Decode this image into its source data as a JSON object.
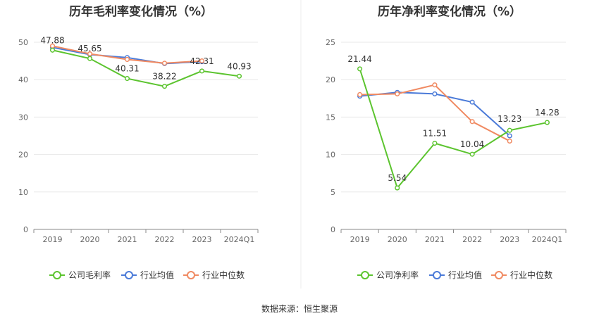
{
  "source_label": "数据来源：恒生聚源",
  "colors": {
    "company": "#5cc42f",
    "avg": "#4a7ad8",
    "median": "#f08a62",
    "grid": "#e8e8e8",
    "axis": "#888888"
  },
  "chart_data": [
    {
      "type": "line",
      "title": "历年毛利率变化情况（%）",
      "categories": [
        "2019",
        "2020",
        "2021",
        "2022",
        "2023",
        "2024Q1"
      ],
      "ylim": [
        0,
        50
      ],
      "yticks": [
        0,
        10,
        20,
        30,
        40,
        50
      ],
      "grid": true,
      "legend": "bottom",
      "series": [
        {
          "name": "公司毛利率",
          "key": "company",
          "values": [
            47.88,
            45.65,
            40.31,
            38.22,
            42.31,
            40.93
          ],
          "labels": [
            "47.88",
            "45.65",
            "40.31",
            "38.22",
            "42.31",
            "40.93"
          ]
        },
        {
          "name": "行业均值",
          "key": "avg",
          "values": [
            48.6,
            46.7,
            45.9,
            44.3,
            44.8,
            null
          ]
        },
        {
          "name": "行业中位数",
          "key": "median",
          "values": [
            49.0,
            46.9,
            45.4,
            44.4,
            45.0,
            null
          ]
        }
      ]
    },
    {
      "type": "line",
      "title": "历年净利率变化情况（%）",
      "categories": [
        "2019",
        "2020",
        "2021",
        "2022",
        "2023",
        "2024Q1"
      ],
      "ylim": [
        0,
        25
      ],
      "yticks": [
        0,
        5,
        10,
        15,
        20,
        25
      ],
      "grid": true,
      "legend": "bottom",
      "series": [
        {
          "name": "公司净利率",
          "key": "company",
          "values": [
            21.44,
            5.54,
            11.51,
            10.04,
            13.23,
            14.28
          ],
          "labels": [
            "21.44",
            "5.54",
            "11.51",
            "10.04",
            "13.23",
            "14.28"
          ]
        },
        {
          "name": "行业均值",
          "key": "avg",
          "values": [
            17.8,
            18.3,
            18.1,
            17.0,
            12.5,
            null
          ]
        },
        {
          "name": "行业中位数",
          "key": "median",
          "values": [
            18.0,
            18.1,
            19.3,
            14.4,
            11.8,
            null
          ]
        }
      ]
    }
  ]
}
